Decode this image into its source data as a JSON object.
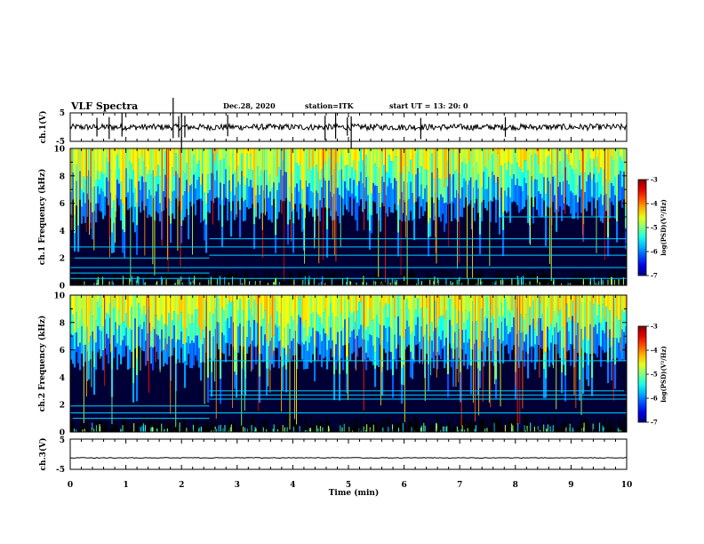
{
  "title": "VLF Spectra",
  "date": "Dec.28, 2020",
  "station": "station=ITK",
  "start_ut": "start  UT =   13: 20: 0",
  "chart_data": [
    {
      "type": "line",
      "panel": "ch1-waveform",
      "ylabel": "ch.1(V)",
      "ylim": [
        -5,
        5
      ],
      "yticks": [
        "5",
        "-5"
      ],
      "xlim": [
        0,
        10
      ],
      "baseline": 0,
      "noise_amplitude": 0.5,
      "spikes_min": [
        0.48,
        0.7,
        0.93,
        1.85,
        1.95,
        2.0,
        2.06,
        2.83,
        4.58,
        4.77,
        4.98,
        5.05,
        6.3,
        7.82
      ]
    },
    {
      "type": "heatmap",
      "panel": "ch1-spectrogram",
      "ylabel": "ch.1  Frequency (kHz)",
      "ylim": [
        0,
        10
      ],
      "yticks": [
        "0",
        "2",
        "4",
        "6",
        "8",
        "10"
      ],
      "xlim": [
        0,
        10
      ],
      "colorbar": {
        "label": "log(PSD)(V²/Hz)",
        "range": [
          -7,
          -3
        ],
        "ticks": [
          "-3",
          "-4",
          "-5",
          "-6",
          "-7"
        ]
      },
      "bands": [
        {
          "x0": 0,
          "x1": 10,
          "khz": 0.5
        },
        {
          "x0": 0,
          "x1": 2.5,
          "khz": 0.9
        },
        {
          "x0": 0,
          "x1": 10,
          "khz": 1.3
        },
        {
          "x0": 0,
          "x1": 2.5,
          "khz": 2.0
        },
        {
          "x0": 2.5,
          "x1": 10,
          "khz": 2.2
        },
        {
          "x0": 0,
          "x1": 10,
          "khz": 2.8
        },
        {
          "x0": 2.5,
          "x1": 10,
          "khz": 3.4
        },
        {
          "x0": 7.7,
          "x1": 9.8,
          "khz": 5.0
        }
      ]
    },
    {
      "type": "heatmap",
      "panel": "ch2-spectrogram",
      "ylabel": "ch.2  Frequency (kHz)",
      "ylim": [
        0,
        10
      ],
      "yticks": [
        "0",
        "2",
        "4",
        "6",
        "8",
        "10"
      ],
      "xlim": [
        0,
        10
      ],
      "colorbar": {
        "label": "log(PSD)(V²/Hz)",
        "range": [
          -7,
          -3
        ],
        "ticks": [
          "-3",
          "-4",
          "-5",
          "-6",
          "-7"
        ]
      },
      "bands": [
        {
          "x0": 0,
          "x1": 2.5,
          "khz": 1.0
        },
        {
          "x0": 0,
          "x1": 10,
          "khz": 1.4
        },
        {
          "x0": 0,
          "x1": 2.5,
          "khz": 1.9
        },
        {
          "x0": 2.5,
          "x1": 10,
          "khz": 2.4
        },
        {
          "x0": 2.5,
          "x1": 10,
          "khz": 2.7
        },
        {
          "x0": 2.5,
          "x1": 10,
          "khz": 3.0
        },
        {
          "x0": 2.5,
          "x1": 10,
          "khz": 5.2
        }
      ]
    },
    {
      "type": "line",
      "panel": "ch3-waveform",
      "ylabel": "ch.3(V)",
      "ylim": [
        -5,
        5
      ],
      "yticks": [
        "5",
        "-5"
      ],
      "xlim": [
        0,
        10
      ],
      "baseline": -1.2
    }
  ],
  "xaxis": {
    "label": "Time  (min)",
    "ticks": [
      "0",
      "1",
      "2",
      "3",
      "4",
      "5",
      "6",
      "7",
      "8",
      "9",
      "10"
    ]
  }
}
